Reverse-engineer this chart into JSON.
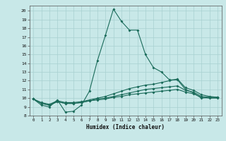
{
  "xlabel": "Humidex (Indice chaleur)",
  "bg_color": "#c8e8e8",
  "line_color": "#1a6b5a",
  "xlim": [
    -0.5,
    23.5
  ],
  "ylim": [
    8,
    20.6
  ],
  "xticks": [
    0,
    1,
    2,
    3,
    4,
    5,
    6,
    7,
    8,
    9,
    10,
    11,
    12,
    13,
    14,
    15,
    16,
    17,
    18,
    19,
    20,
    21,
    22,
    23
  ],
  "yticks": [
    8,
    9,
    10,
    11,
    12,
    13,
    14,
    15,
    16,
    17,
    18,
    19,
    20
  ],
  "series": [
    {
      "x": [
        0,
        1,
        2,
        3,
        4,
        5,
        6,
        7,
        8,
        9,
        10,
        11,
        12,
        13,
        14,
        15,
        16,
        17,
        18,
        19,
        20,
        21,
        22,
        23
      ],
      "y": [
        9.9,
        9.2,
        9.0,
        9.8,
        8.4,
        8.5,
        9.2,
        10.8,
        14.3,
        17.2,
        20.2,
        18.8,
        17.8,
        17.8,
        15.0,
        13.5,
        13.0,
        12.1,
        12.1,
        11.0,
        10.6,
        10.0,
        10.1,
        10.1
      ]
    },
    {
      "x": [
        0,
        1,
        2,
        3,
        4,
        5,
        6,
        7,
        8,
        9,
        10,
        11,
        12,
        13,
        14,
        15,
        16,
        17,
        18,
        19,
        20,
        21,
        22,
        23
      ],
      "y": [
        9.9,
        9.5,
        9.3,
        9.7,
        9.5,
        9.5,
        9.6,
        9.8,
        10.0,
        10.2,
        10.5,
        10.8,
        11.1,
        11.3,
        11.5,
        11.6,
        11.8,
        12.0,
        12.2,
        11.2,
        10.9,
        10.4,
        10.2,
        10.1
      ]
    },
    {
      "x": [
        0,
        1,
        2,
        3,
        4,
        5,
        6,
        7,
        8,
        9,
        10,
        11,
        12,
        13,
        14,
        15,
        16,
        17,
        18,
        19,
        20,
        21,
        22,
        23
      ],
      "y": [
        9.9,
        9.4,
        9.2,
        9.6,
        9.4,
        9.4,
        9.5,
        9.7,
        9.9,
        10.0,
        10.2,
        10.4,
        10.6,
        10.8,
        11.0,
        11.1,
        11.2,
        11.3,
        11.4,
        10.9,
        10.7,
        10.2,
        10.1,
        10.1
      ]
    },
    {
      "x": [
        0,
        1,
        2,
        3,
        4,
        5,
        6,
        7,
        8,
        9,
        10,
        11,
        12,
        13,
        14,
        15,
        16,
        17,
        18,
        19,
        20,
        21,
        22,
        23
      ],
      "y": [
        9.9,
        9.4,
        9.2,
        9.6,
        9.4,
        9.4,
        9.5,
        9.7,
        9.8,
        9.9,
        10.1,
        10.2,
        10.4,
        10.5,
        10.6,
        10.7,
        10.8,
        10.9,
        11.0,
        10.7,
        10.5,
        10.1,
        10.0,
        10.0
      ]
    }
  ]
}
